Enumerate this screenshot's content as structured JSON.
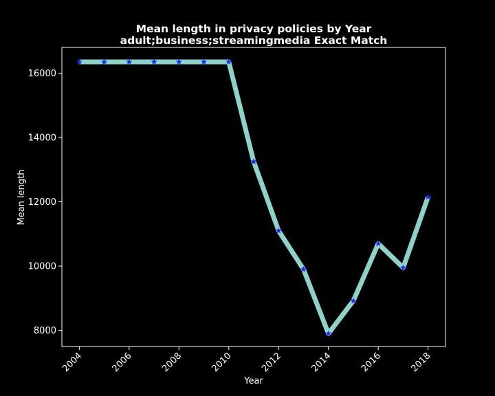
{
  "chart_data": {
    "type": "line",
    "title": "Mean length in privacy policies by Year",
    "subtitle": "adult;business;streamingmedia Exact Match",
    "xlabel": "Year",
    "ylabel": "Mean length",
    "xlim": [
      2003.3,
      2018.7
    ],
    "ylim": [
      7500,
      16800
    ],
    "x_ticks": [
      2004,
      2006,
      2008,
      2010,
      2012,
      2014,
      2016,
      2018
    ],
    "y_ticks": [
      8000,
      10000,
      12000,
      14000,
      16000
    ],
    "grid": false,
    "legend": "none",
    "series": [
      {
        "name": "Mean length",
        "line_color": "#8dd3c7",
        "marker": "star",
        "marker_color": "#1f1fff",
        "x": [
          2004,
          2005,
          2006,
          2007,
          2008,
          2009,
          2010,
          2011,
          2012,
          2013,
          2014,
          2015,
          2016,
          2017,
          2018
        ],
        "values": [
          16350,
          16350,
          16350,
          16350,
          16350,
          16350,
          16350,
          13250,
          11100,
          9900,
          7900,
          8920,
          10700,
          9950,
          12150
        ]
      }
    ]
  },
  "colors": {
    "background": "#000000",
    "foreground": "#ffffff"
  }
}
